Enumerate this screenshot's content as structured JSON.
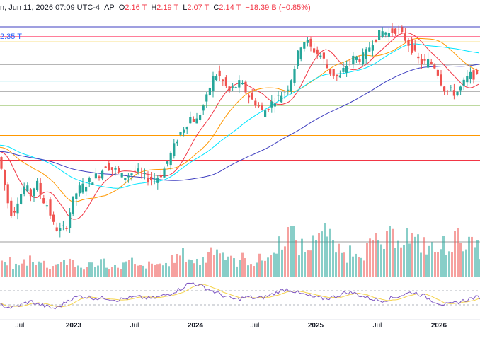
{
  "legend": {
    "date_text": "n, Jun 11, 2026 07:09 UTC-4",
    "ohlc": [
      {
        "key": "AP",
        "value": ""
      },
      {
        "key": "O",
        "value": "2.16 T"
      },
      {
        "key": "H",
        "value": "2.19 T"
      },
      {
        "key": "L",
        "value": "2.07 T"
      },
      {
        "key": "C",
        "value": "2.14 T"
      },
      {
        "key": "",
        "value": "−18.39 B (−0.85%)"
      }
    ],
    "ma_value": "2.35 T"
  },
  "colors": {
    "up": "#26a69a",
    "down": "#ef5350",
    "ma_fast": "#f23645",
    "ma_mid": "#ff9800",
    "ma_slow": "#00e5ff",
    "ma_long": "#3f3fc0",
    "rsi_line": "#7e57c2",
    "rsi_ma": "#f5d34b",
    "grid": "#e0e3eb"
  },
  "chart_data": {
    "type": "candlestick",
    "x_ticks": [
      {
        "label": "Jul",
        "bold": false
      },
      {
        "label": "2023",
        "bold": true
      },
      {
        "label": "Jul",
        "bold": false
      },
      {
        "label": "2024",
        "bold": true
      },
      {
        "label": "Jul",
        "bold": false
      },
      {
        "label": "2025",
        "bold": true
      },
      {
        "label": "Jul",
        "bold": false
      },
      {
        "label": "2026",
        "bold": true
      }
    ],
    "horizontal_levels": [
      {
        "color": "#3f3fc0",
        "level": 1.0
      },
      {
        "color": "#ff6b8b",
        "level": 0.955
      },
      {
        "color": "#f5c518",
        "level": 0.93
      },
      {
        "color": "#9e9e9e",
        "level": 0.825
      },
      {
        "color": "#26c6da",
        "level": 0.748
      },
      {
        "color": "#9e9e9e",
        "level": 0.7
      },
      {
        "color": "#7cb342",
        "level": 0.635
      },
      {
        "color": "#ff9800",
        "level": 0.495
      },
      {
        "color": "#f23645",
        "level": 0.38
      },
      {
        "color": "#9e9e9e",
        "level": 0.0
      }
    ],
    "price_path": [
      [
        0,
        0.42
      ],
      [
        8,
        0.32
      ],
      [
        16,
        0.18
      ],
      [
        22,
        0.12
      ],
      [
        30,
        0.2
      ],
      [
        40,
        0.26
      ],
      [
        48,
        0.22
      ],
      [
        56,
        0.28
      ],
      [
        64,
        0.2
      ],
      [
        72,
        0.17
      ],
      [
        80,
        0.08
      ],
      [
        88,
        0.05
      ],
      [
        98,
        0.07
      ],
      [
        106,
        0.18
      ],
      [
        114,
        0.24
      ],
      [
        122,
        0.26
      ],
      [
        130,
        0.28
      ],
      [
        138,
        0.3
      ],
      [
        146,
        0.32
      ],
      [
        154,
        0.36
      ],
      [
        162,
        0.34
      ],
      [
        170,
        0.33
      ],
      [
        178,
        0.3
      ],
      [
        186,
        0.31
      ],
      [
        194,
        0.33
      ],
      [
        202,
        0.32
      ],
      [
        210,
        0.3
      ],
      [
        218,
        0.29
      ],
      [
        226,
        0.3
      ],
      [
        234,
        0.32
      ],
      [
        242,
        0.38
      ],
      [
        250,
        0.44
      ],
      [
        258,
        0.5
      ],
      [
        266,
        0.54
      ],
      [
        274,
        0.58
      ],
      [
        282,
        0.56
      ],
      [
        290,
        0.62
      ],
      [
        298,
        0.68
      ],
      [
        304,
        0.76
      ],
      [
        312,
        0.78
      ],
      [
        320,
        0.74
      ],
      [
        328,
        0.7
      ],
      [
        336,
        0.72
      ],
      [
        344,
        0.74
      ],
      [
        352,
        0.7
      ],
      [
        360,
        0.66
      ],
      [
        368,
        0.64
      ],
      [
        376,
        0.6
      ],
      [
        384,
        0.63
      ],
      [
        392,
        0.66
      ],
      [
        400,
        0.68
      ],
      [
        410,
        0.71
      ],
      [
        418,
        0.78
      ],
      [
        424,
        0.86
      ],
      [
        430,
        0.92
      ],
      [
        436,
        0.94
      ],
      [
        444,
        0.9
      ],
      [
        452,
        0.88
      ],
      [
        460,
        0.86
      ],
      [
        468,
        0.8
      ],
      [
        476,
        0.78
      ],
      [
        484,
        0.76
      ],
      [
        490,
        0.8
      ],
      [
        498,
        0.84
      ],
      [
        506,
        0.86
      ],
      [
        514,
        0.85
      ],
      [
        522,
        0.88
      ],
      [
        530,
        0.93
      ],
      [
        538,
        0.96
      ],
      [
        546,
        0.98
      ],
      [
        554,
        0.97
      ],
      [
        562,
        0.99
      ],
      [
        570,
        0.97
      ],
      [
        578,
        0.94
      ],
      [
        586,
        0.9
      ],
      [
        594,
        0.85
      ],
      [
        602,
        0.83
      ],
      [
        610,
        0.84
      ],
      [
        618,
        0.82
      ],
      [
        624,
        0.78
      ],
      [
        630,
        0.72
      ],
      [
        636,
        0.7
      ],
      [
        642,
        0.7
      ],
      [
        648,
        0.69
      ],
      [
        654,
        0.71
      ],
      [
        660,
        0.74
      ],
      [
        666,
        0.77
      ],
      [
        672,
        0.78
      ],
      [
        678,
        0.76
      ]
    ],
    "volume_profile": [
      0.25,
      0.3,
      0.2,
      0.22,
      0.28,
      0.35,
      0.3,
      0.25,
      0.2,
      0.22,
      0.3,
      0.28,
      0.25,
      0.2,
      0.18,
      0.22,
      0.25,
      0.3,
      0.22,
      0.18,
      0.2,
      0.24,
      0.28,
      0.2,
      0.18,
      0.22,
      0.2,
      0.25,
      0.22,
      0.3,
      0.35,
      0.4,
      0.38,
      0.3,
      0.28,
      0.32,
      0.5,
      0.6,
      0.45,
      0.38,
      0.3,
      0.28,
      0.34,
      0.3,
      0.26,
      0.32,
      0.36,
      0.4,
      0.6,
      0.75,
      0.8,
      0.7,
      0.55,
      0.5,
      0.6,
      0.9,
      1.0,
      0.7,
      0.55,
      0.45,
      0.4,
      0.48,
      0.52,
      0.46,
      0.55,
      0.6,
      0.58,
      0.62,
      0.7,
      0.8,
      0.75,
      0.68,
      0.6,
      0.62,
      0.55,
      0.5,
      0.48,
      0.58,
      0.62,
      0.68,
      0.72,
      0.6,
      0.55,
      0.5,
      0.48
    ],
    "rsi_profile": [
      0.3,
      0.25,
      0.22,
      0.28,
      0.35,
      0.4,
      0.32,
      0.28,
      0.22,
      0.2,
      0.3,
      0.45,
      0.5,
      0.55,
      0.52,
      0.5,
      0.48,
      0.5,
      0.46,
      0.44,
      0.48,
      0.5,
      0.52,
      0.5,
      0.48,
      0.5,
      0.55,
      0.6,
      0.68,
      0.75,
      0.88,
      0.92,
      0.85,
      0.78,
      0.7,
      0.62,
      0.55,
      0.48,
      0.45,
      0.5,
      0.52,
      0.48,
      0.5,
      0.55,
      0.62,
      0.7,
      0.74,
      0.7,
      0.62,
      0.58,
      0.52,
      0.5,
      0.48,
      0.5,
      0.55,
      0.62,
      0.66,
      0.62,
      0.55,
      0.5,
      0.46,
      0.42,
      0.45,
      0.5,
      0.55,
      0.6,
      0.66,
      0.62,
      0.55,
      0.45,
      0.38,
      0.32,
      0.3,
      0.35,
      0.4,
      0.45,
      0.5,
      0.52
    ]
  }
}
